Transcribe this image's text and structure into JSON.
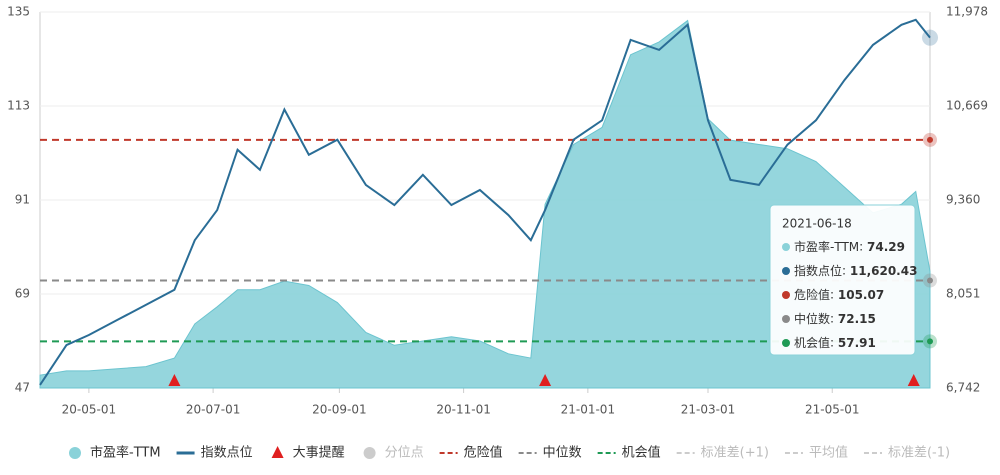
{
  "chart_data": {
    "type": "area-line",
    "x": [
      "20-04-07",
      "20-04-20",
      "20-05-01",
      "20-05-15",
      "20-05-29",
      "20-06-12",
      "20-06-22",
      "20-07-03",
      "20-07-13",
      "20-07-24",
      "20-08-05",
      "20-08-17",
      "20-08-31",
      "20-09-14",
      "20-09-28",
      "20-10-12",
      "20-10-26",
      "20-11-09",
      "20-11-23",
      "20-12-04",
      "20-12-11",
      "20-12-25",
      "21-01-08",
      "21-01-22",
      "21-02-05",
      "21-02-19",
      "21-03-01",
      "21-03-12",
      "21-03-26",
      "21-04-09",
      "21-04-23",
      "21-05-07",
      "21-05-21",
      "21-06-04",
      "21-06-11",
      "21-06-18"
    ],
    "xlim": [
      "20-04-07",
      "21-06-18"
    ],
    "xticks": [
      "20-05-01",
      "20-07-01",
      "20-09-01",
      "20-11-01",
      "21-01-01",
      "21-03-01",
      "21-05-01"
    ],
    "series": [
      {
        "name": "市盈率-TTM",
        "color": "#8ad2d9",
        "values": [
          50,
          51,
          51,
          51.5,
          52,
          54,
          62,
          66,
          70,
          70,
          72,
          71,
          67,
          60,
          57,
          58,
          59,
          58,
          55,
          54,
          90,
          104,
          108,
          125,
          128,
          133,
          110,
          105,
          104,
          103,
          100,
          94,
          88,
          90,
          93,
          74.29
        ]
      },
      {
        "name": "指数点位",
        "color": "#2a6d96",
        "axis": "y2",
        "values": [
          6784,
          7340,
          7480,
          7690,
          7900,
          8110,
          8800,
          9220,
          10060,
          9780,
          10620,
          9990,
          10200,
          9570,
          9290,
          9710,
          9290,
          9500,
          9150,
          8800,
          9220,
          10200,
          10470,
          11590,
          11450,
          11800,
          10470,
          9640,
          9570,
          10130,
          10470,
          11030,
          11520,
          11800,
          11870,
          11620.43
        ]
      }
    ],
    "ylim": [
      47,
      135
    ],
    "yticks": [
      47,
      69,
      91,
      113,
      135
    ],
    "y2lim": [
      6742,
      11978
    ],
    "y2ticks": [
      {
        "value": 6742,
        "label": "6,742"
      },
      {
        "value": 8051,
        "label": "8,051"
      },
      {
        "value": 9360,
        "label": "9,360"
      },
      {
        "value": 10669,
        "label": "10,669"
      },
      {
        "value": 11978,
        "label": "11,978"
      }
    ],
    "grid": true,
    "reference_lines": [
      {
        "name": "危险值",
        "value": 105.07,
        "color": "#c0392b"
      },
      {
        "name": "中位数",
        "value": 72.15,
        "color": "#8a8a8a"
      },
      {
        "name": "机会值",
        "value": 57.91,
        "color": "#1f9a55"
      }
    ],
    "events": {
      "name": "大事提醒",
      "color": "#e02020",
      "x": [
        "20-06-12",
        "20-12-11",
        "21-06-10"
      ]
    },
    "inactive_legend": [
      "分位点",
      "标准差(+1)",
      "平均值",
      "标准差(-1)"
    ],
    "tooltip": {
      "date": "2021-06-18",
      "rows": [
        {
          "name": "市盈率-TTM",
          "value": 74.29,
          "color": "#8ad2d9"
        },
        {
          "name": "指数点位",
          "value": 11620.43,
          "label": "11,620.43",
          "color": "#2a6d96"
        },
        {
          "name": "危险值",
          "value": 105.07,
          "color": "#c0392b"
        },
        {
          "name": "中位数",
          "value": 72.15,
          "color": "#8a8a8a"
        },
        {
          "name": "机会值",
          "value": 57.91,
          "color": "#1f9a55"
        }
      ]
    }
  }
}
